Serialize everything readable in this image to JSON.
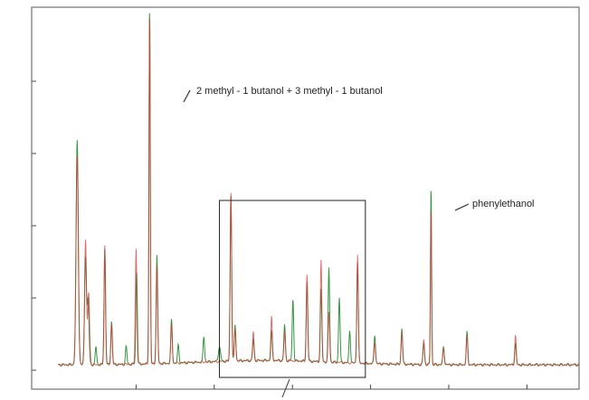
{
  "chart_data": {
    "type": "line",
    "title": "",
    "xlabel": "",
    "ylabel": "",
    "grid": false,
    "legend": "none",
    "series_colors": [
      "#1f8a2a",
      "#d83a3a"
    ],
    "annotations": [
      {
        "text": "2 methyl - 1 butanol + 3 methyl - 1 butanol",
        "peak_index": 0
      },
      {
        "text": "phenylethanol",
        "peak_index": 1
      }
    ],
    "xlim": [
      0,
      100
    ],
    "ylim": [
      0,
      100
    ],
    "x_ticks": [
      15,
      30,
      45,
      60,
      75,
      90
    ],
    "y_ticks": [
      0,
      20,
      40,
      60,
      80
    ],
    "baseline": 1.5,
    "highlight_region": {
      "x": [
        31,
        59
      ],
      "y": [
        -2,
        47
      ]
    },
    "series": [
      {
        "name": "",
        "color": "#1f8a2a",
        "peaks": [
          {
            "x": 3.7,
            "h": 62,
            "w": 0.3
          },
          {
            "x": 5.3,
            "h": 30,
            "w": 0.25
          },
          {
            "x": 5.8,
            "h": 18,
            "w": 0.25
          },
          {
            "x": 7.3,
            "h": 5,
            "w": 0.2
          },
          {
            "x": 9.0,
            "h": 32,
            "w": 0.2
          },
          {
            "x": 10.3,
            "h": 12,
            "w": 0.2
          },
          {
            "x": 13.1,
            "h": 5,
            "w": 0.2
          },
          {
            "x": 15.1,
            "h": 26,
            "w": 0.2
          },
          {
            "x": 17.6,
            "h": 100,
            "w": 0.17
          },
          {
            "x": 19.0,
            "h": 30,
            "w": 0.2
          },
          {
            "x": 21.8,
            "h": 12,
            "w": 0.2
          },
          {
            "x": 23.1,
            "h": 5,
            "w": 0.2
          },
          {
            "x": 28.0,
            "h": 7,
            "w": 0.2
          },
          {
            "x": 31.0,
            "h": 4,
            "w": 0.3
          },
          {
            "x": 33.2,
            "h": 46,
            "w": 0.2
          },
          {
            "x": 34.0,
            "h": 10,
            "w": 0.2
          },
          {
            "x": 37.5,
            "h": 6,
            "w": 0.2
          },
          {
            "x": 41.0,
            "h": 8,
            "w": 0.2
          },
          {
            "x": 43.5,
            "h": 10,
            "w": 0.2
          },
          {
            "x": 45.1,
            "h": 17,
            "w": 0.2
          },
          {
            "x": 47.8,
            "h": 22,
            "w": 0.2
          },
          {
            "x": 50.5,
            "h": 20,
            "w": 0.2
          },
          {
            "x": 52.0,
            "h": 26,
            "w": 0.2
          },
          {
            "x": 54.0,
            "h": 18,
            "w": 0.2
          },
          {
            "x": 56.0,
            "h": 9,
            "w": 0.2
          },
          {
            "x": 57.5,
            "h": 28,
            "w": 0.2
          },
          {
            "x": 60.8,
            "h": 8,
            "w": 0.2
          },
          {
            "x": 66.0,
            "h": 10,
            "w": 0.2
          },
          {
            "x": 70.2,
            "h": 6,
            "w": 0.2
          },
          {
            "x": 71.6,
            "h": 50,
            "w": 0.15
          },
          {
            "x": 74.0,
            "h": 5,
            "w": 0.2
          },
          {
            "x": 78.5,
            "h": 9,
            "w": 0.2
          },
          {
            "x": 87.8,
            "h": 6,
            "w": 0.2
          }
        ]
      },
      {
        "name": "",
        "color": "#d83a3a",
        "peaks": [
          {
            "x": 3.7,
            "h": 58,
            "w": 0.3
          },
          {
            "x": 5.3,
            "h": 35,
            "w": 0.25
          },
          {
            "x": 5.9,
            "h": 20,
            "w": 0.25
          },
          {
            "x": 9.0,
            "h": 33,
            "w": 0.2
          },
          {
            "x": 10.3,
            "h": 11,
            "w": 0.2
          },
          {
            "x": 15.0,
            "h": 32,
            "w": 0.2
          },
          {
            "x": 17.6,
            "h": 98,
            "w": 0.17
          },
          {
            "x": 19.0,
            "h": 27,
            "w": 0.2
          },
          {
            "x": 21.8,
            "h": 11,
            "w": 0.2
          },
          {
            "x": 33.2,
            "h": 47,
            "w": 0.2
          },
          {
            "x": 34.0,
            "h": 9,
            "w": 0.2
          },
          {
            "x": 37.5,
            "h": 8,
            "w": 0.2
          },
          {
            "x": 41.0,
            "h": 12,
            "w": 0.2
          },
          {
            "x": 43.5,
            "h": 8,
            "w": 0.2
          },
          {
            "x": 47.8,
            "h": 24,
            "w": 0.2
          },
          {
            "x": 50.5,
            "h": 28,
            "w": 0.2
          },
          {
            "x": 52.0,
            "h": 14,
            "w": 0.2
          },
          {
            "x": 57.5,
            "h": 30,
            "w": 0.2
          },
          {
            "x": 60.8,
            "h": 6,
            "w": 0.2
          },
          {
            "x": 66.0,
            "h": 9,
            "w": 0.2
          },
          {
            "x": 70.2,
            "h": 7,
            "w": 0.2
          },
          {
            "x": 71.6,
            "h": 44,
            "w": 0.15
          },
          {
            "x": 74.0,
            "h": 5,
            "w": 0.2
          },
          {
            "x": 78.5,
            "h": 8,
            "w": 0.2
          },
          {
            "x": 87.8,
            "h": 8,
            "w": 0.2
          }
        ]
      }
    ]
  }
}
